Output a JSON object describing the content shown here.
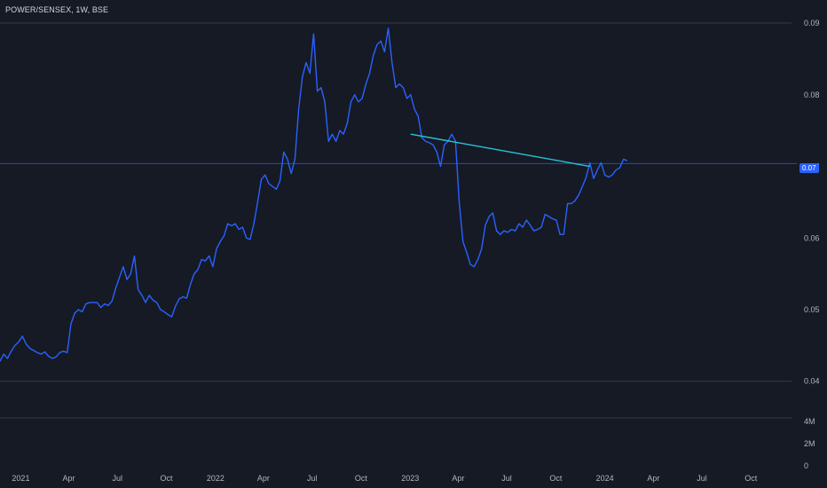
{
  "header": {
    "title": "POWER/SENSEX, 1W, BSE"
  },
  "colors": {
    "background": "#161a25",
    "series_line": "#2962ff",
    "trendline": "#26c6da",
    "price_line": "#2962ff",
    "grid": "#363a45",
    "axis_text": "#b2b5be",
    "badge": "#2962ff"
  },
  "chart_data": {
    "type": "line",
    "title": "POWER/SENSEX, 1W, BSE",
    "xlabel": "",
    "ylabel": "",
    "x_start": "2020-11-23",
    "x_range": [
      "2020-11-23",
      "2024-12-16"
    ],
    "ylim": [
      0.0365,
      0.0905
    ],
    "y_ticks": [
      {
        "value": 0.04,
        "label": "0.04"
      },
      {
        "value": 0.05,
        "label": "0.05"
      },
      {
        "value": 0.06,
        "label": "0.06"
      },
      {
        "value": 0.07,
        "label": "0.07"
      },
      {
        "value": 0.08,
        "label": "0.08"
      },
      {
        "value": 0.09,
        "label": "0.09"
      }
    ],
    "x_ticks": [
      {
        "date": "2021-01-01",
        "label": "2021"
      },
      {
        "date": "2021-04-01",
        "label": "Apr"
      },
      {
        "date": "2021-07-01",
        "label": "Jul"
      },
      {
        "date": "2021-10-01",
        "label": "Oct"
      },
      {
        "date": "2022-01-01",
        "label": "2022"
      },
      {
        "date": "2022-04-01",
        "label": "Apr"
      },
      {
        "date": "2022-07-01",
        "label": "Jul"
      },
      {
        "date": "2022-10-01",
        "label": "Oct"
      },
      {
        "date": "2023-01-01",
        "label": "2023"
      },
      {
        "date": "2023-04-01",
        "label": "Apr"
      },
      {
        "date": "2023-07-01",
        "label": "Jul"
      },
      {
        "date": "2023-10-01",
        "label": "Oct"
      },
      {
        "date": "2024-01-01",
        "label": "2024"
      },
      {
        "date": "2024-04-01",
        "label": "Apr"
      },
      {
        "date": "2024-07-01",
        "label": "Jul"
      },
      {
        "date": "2024-10-01",
        "label": "Oct"
      }
    ],
    "last_price": {
      "value": 0.0704,
      "label": "0.07"
    },
    "trendline": {
      "start": {
        "date": "2023-01-02",
        "value": 0.0745
      },
      "end": {
        "date": "2023-12-04",
        "value": 0.07
      }
    },
    "volume_axis": [
      {
        "label": "4M"
      },
      {
        "label": "2M"
      },
      {
        "label": "0"
      }
    ],
    "grid": "horizontal-reference-lines",
    "series": [
      {
        "weekly_step_days": 7,
        "values": [
          0.0428,
          0.0438,
          0.0432,
          0.0442,
          0.045,
          0.0455,
          0.0463,
          0.0452,
          0.0446,
          0.0443,
          0.044,
          0.0438,
          0.0441,
          0.0435,
          0.0432,
          0.0434,
          0.044,
          0.0442,
          0.044,
          0.048,
          0.0495,
          0.05,
          0.0497,
          0.0508,
          0.051,
          0.051,
          0.051,
          0.0503,
          0.0508,
          0.0506,
          0.0512,
          0.053,
          0.0545,
          0.056,
          0.0542,
          0.055,
          0.0575,
          0.0528,
          0.052,
          0.051,
          0.052,
          0.0513,
          0.051,
          0.05,
          0.0497,
          0.0493,
          0.049,
          0.0505,
          0.0515,
          0.0518,
          0.0516,
          0.0535,
          0.055,
          0.0556,
          0.057,
          0.0568,
          0.0575,
          0.056,
          0.0585,
          0.0595,
          0.0603,
          0.062,
          0.0617,
          0.062,
          0.0612,
          0.0615,
          0.06,
          0.0598,
          0.062,
          0.065,
          0.0682,
          0.0688,
          0.0676,
          0.0672,
          0.0668,
          0.068,
          0.072,
          0.071,
          0.069,
          0.071,
          0.078,
          0.0825,
          0.0845,
          0.083,
          0.0885,
          0.0805,
          0.081,
          0.079,
          0.0735,
          0.0745,
          0.0735,
          0.075,
          0.0745,
          0.076,
          0.079,
          0.08,
          0.079,
          0.0795,
          0.0815,
          0.083,
          0.0855,
          0.087,
          0.0875,
          0.086,
          0.0893,
          0.0845,
          0.081,
          0.0815,
          0.081,
          0.0795,
          0.08,
          0.078,
          0.077,
          0.074,
          0.0735,
          0.0733,
          0.073,
          0.072,
          0.07,
          0.073,
          0.0735,
          0.0745,
          0.0735,
          0.065,
          0.0595,
          0.058,
          0.0563,
          0.056,
          0.057,
          0.0585,
          0.0618,
          0.063,
          0.0635,
          0.061,
          0.0605,
          0.061,
          0.0608,
          0.0612,
          0.061,
          0.062,
          0.0615,
          0.0625,
          0.0618,
          0.061,
          0.0612,
          0.0615,
          0.0633,
          0.063,
          0.0627,
          0.0625,
          0.0605,
          0.0605,
          0.0648,
          0.0648,
          0.0652,
          0.066,
          0.0672,
          0.0685,
          0.0705,
          0.0683,
          0.0695,
          0.0705,
          0.0688,
          0.0685,
          0.0688,
          0.0695,
          0.0698,
          0.071,
          0.0708
        ]
      }
    ]
  }
}
